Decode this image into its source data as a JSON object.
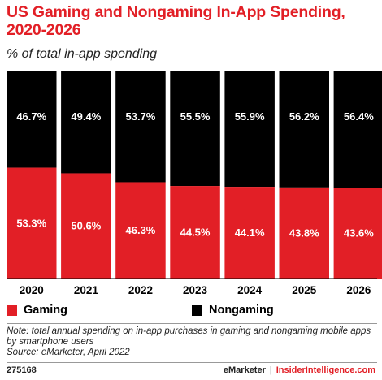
{
  "header": {
    "title": "US Gaming and Nongaming In-App Spending, 2020-2026",
    "subtitle": "% of total in-app spending"
  },
  "legend": {
    "gaming_label": "Gaming",
    "nongaming_label": "Nongaming"
  },
  "colors": {
    "gaming": "#e21f26",
    "nongaming": "#000000",
    "label_text": "#ffffff",
    "title": "#e21f26"
  },
  "note": "Note: total annual spending on in-app purchases in gaming and nongaming mobile apps by smartphone users",
  "source": "Source: eMarketer, April 2022",
  "footer": {
    "chart_id": "275168",
    "brand1": "eMarketer",
    "separator": "|",
    "brand2": "InsiderIntelligence.com"
  },
  "chart_data": {
    "type": "bar",
    "stacked": true,
    "categories": [
      "2020",
      "2021",
      "2022",
      "2023",
      "2024",
      "2025",
      "2026"
    ],
    "series": [
      {
        "name": "Gaming",
        "values": [
          53.3,
          50.6,
          46.3,
          44.5,
          44.1,
          43.8,
          43.6
        ],
        "labels": [
          "53.3%",
          "50.6%",
          "46.3%",
          "44.5%",
          "44.1%",
          "43.8%",
          "43.6%"
        ]
      },
      {
        "name": "Nongaming",
        "values": [
          46.7,
          49.4,
          53.7,
          55.5,
          55.9,
          56.2,
          56.4
        ],
        "labels": [
          "46.7%",
          "49.4%",
          "53.7%",
          "55.5%",
          "55.9%",
          "56.2%",
          "56.4%"
        ]
      }
    ],
    "ylim": [
      0,
      100
    ],
    "grid": false,
    "legend_position": "bottom"
  }
}
